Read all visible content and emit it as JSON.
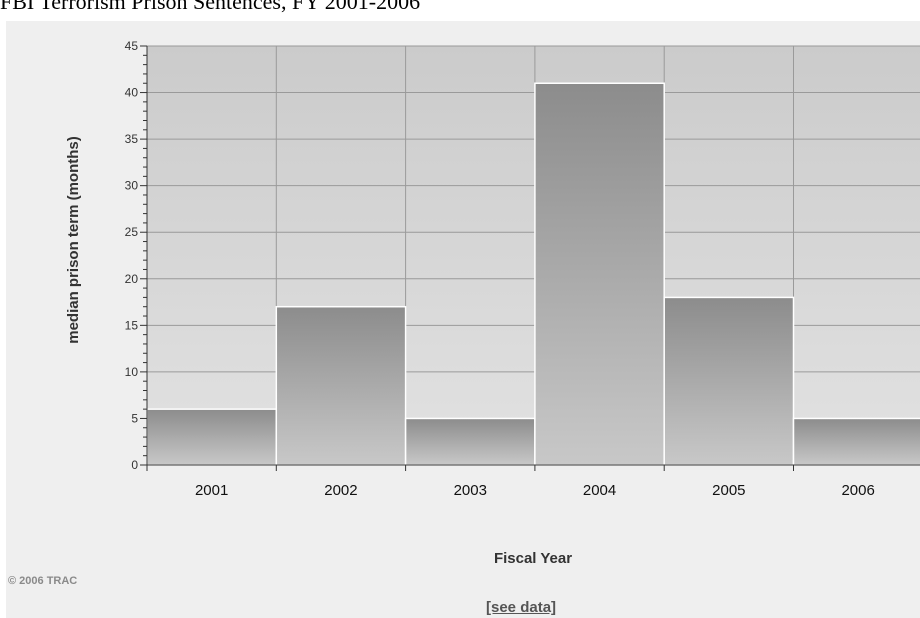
{
  "page": {
    "title": "FBI Terrorism Prison Sentences, FY 2001-2006",
    "copyright": "© 2006 TRAC",
    "see_data_link": "[see data]"
  },
  "colors": {
    "panel_bg": "#efefef",
    "plot_bg_top": "#cbcbcb",
    "plot_bg_bottom": "#e2e2e2",
    "bar_top": "#8c8c8c",
    "bar_bottom": "#c8c8c8",
    "bar_stroke": "#ffffff",
    "grid": "#9a9a9a"
  },
  "chart_data": {
    "type": "bar",
    "title": "",
    "xlabel": "Fiscal Year",
    "ylabel": "median prison term (months)",
    "categories": [
      "2001",
      "2002",
      "2003",
      "2004",
      "2005",
      "2006"
    ],
    "values": [
      6,
      17,
      5,
      41,
      18,
      5
    ],
    "ylim": [
      0,
      45
    ],
    "yticks": [
      0,
      5,
      10,
      15,
      20,
      25,
      30,
      35,
      40,
      45
    ],
    "minor_tick_step": 1,
    "grid": true,
    "legend": "none"
  }
}
